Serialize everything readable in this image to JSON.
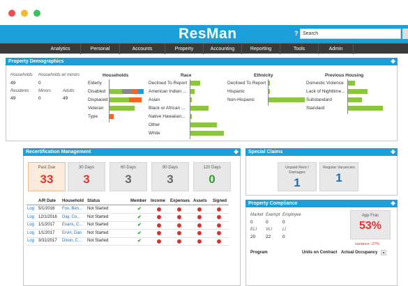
{
  "window": {
    "controls": [
      "close",
      "minimize",
      "maximize"
    ]
  },
  "header": {
    "logo": "ResMan",
    "help": "?",
    "search_placeholder": "Search"
  },
  "nav": [
    "Analytics",
    "Personal",
    "Accounts",
    "Property",
    "Accounting",
    "Reporting",
    "Tools",
    "Admin"
  ],
  "demographics": {
    "title": "Property Demographics",
    "stats": [
      {
        "label": "Households",
        "value": "49"
      },
      {
        "label": "Households w/ minors",
        "value": "0"
      },
      {
        "label": "Residents",
        "value": "49"
      },
      {
        "label": "Minors",
        "value": "0"
      },
      {
        "label": "Adults",
        "value": "49"
      }
    ],
    "households": {
      "title": "Households",
      "rows": [
        {
          "label": "Elderly",
          "segments": []
        },
        {
          "label": "Disabled",
          "segments": [
            {
              "frac": 0.35,
              "color": "#8cc63f"
            },
            {
              "frac": 0.28,
              "color": "#888888"
            },
            {
              "frac": 0.18,
              "color": "#f26522"
            },
            {
              "frac": 0.16,
              "color": "#1a9fd8"
            }
          ]
        },
        {
          "label": "Displaced",
          "segments": [
            {
              "frac": 0.55,
              "color": "#8cc63f"
            },
            {
              "frac": 0.35,
              "color": "#f26522"
            }
          ]
        },
        {
          "label": "Veteran",
          "segments": [
            {
              "frac": 0.72,
              "color": "#8cc63f"
            }
          ]
        },
        {
          "label": "Type",
          "segments": [
            {
              "frac": 0.12,
              "color": "#f26522"
            }
          ]
        }
      ]
    },
    "race": {
      "title": "Race",
      "rows": [
        {
          "label": "Declined To Report",
          "frac": 0.3
        },
        {
          "label": "American Indian ...",
          "frac": 0.12
        },
        {
          "label": "Asian",
          "frac": 0.04
        },
        {
          "label": "Black or African ...",
          "frac": 0.55
        },
        {
          "label": "Native Hawaiian...",
          "frac": 0.03
        },
        {
          "label": "Other",
          "frac": 0.8
        },
        {
          "label": "White",
          "frac": 1.0
        }
      ]
    },
    "ethnicity": {
      "title": "Ethnicity",
      "rows": [
        {
          "label": "Declined To Report",
          "frac": 0.02
        },
        {
          "label": "Hispanic",
          "frac": 0.03
        },
        {
          "label": "Non-Hispanic",
          "frac": 1.0
        }
      ]
    },
    "housing": {
      "title": "Previous Housing",
      "rows": [
        {
          "label": "Domestic Violence",
          "frac": 0.2
        },
        {
          "label": "Lack of Nighttime...",
          "frac": 0.55
        },
        {
          "label": "Substandard",
          "frac": 0.4
        },
        {
          "label": "Standard",
          "frac": 1.0
        }
      ]
    }
  },
  "recert": {
    "title": "Recertification Management",
    "cards": [
      {
        "label": "Past Due",
        "value": "33",
        "color": "#e53030"
      },
      {
        "label": "30 Days",
        "value": "3",
        "color": "#e53030"
      },
      {
        "label": "60 Days",
        "value": "3",
        "color": "#666666"
      },
      {
        "label": "90 Days",
        "value": "3",
        "color": "#666666"
      },
      {
        "label": "120 Days",
        "value": "0",
        "color": "#2f9e2f"
      }
    ],
    "columns": [
      "A/R Date",
      "Household",
      "Status",
      "Member",
      "Income",
      "Expenses",
      "Assets",
      "Signed"
    ],
    "rows": [
      {
        "log": "Log",
        "date": "5/1/2016",
        "household": "Fox, Ben...",
        "status": "Not Started"
      },
      {
        "log": "Log",
        "date": "12/1/2016",
        "household": "Day, Co...",
        "status": "Not Started"
      },
      {
        "log": "Log",
        "date": "1/1/2017",
        "household": "Evans, C...",
        "status": "Not Started"
      },
      {
        "log": "Log",
        "date": "1/1/2017",
        "household": "Ervin, Dan",
        "status": "Not Started"
      },
      {
        "log": "Log",
        "date": "3/31/2017",
        "household": "Dixon, C...",
        "status": "Not Started"
      }
    ]
  },
  "claims": {
    "title": "Special Claims",
    "cards": [
      {
        "label": "Unpaid Rent / Damages",
        "value": "1"
      },
      {
        "label": "Regular Vacancies",
        "value": "1"
      }
    ]
  },
  "compliance": {
    "title": "Property Compliance",
    "row1_labels": [
      "Market",
      "Exempt",
      "Employee"
    ],
    "row1_values": [
      "0",
      "0",
      "0"
    ],
    "row2_labels": [
      "ELI",
      "VLI",
      "LI"
    ],
    "row2_values": [
      "20",
      "22",
      "0"
    ],
    "app_frac_label": "App Frac",
    "app_frac_value": "53%",
    "variance": "variance -27%",
    "columns": [
      "Program",
      "Units on Contract",
      "Actual Occupancy"
    ]
  },
  "colors": {
    "accent": "#1a9fd8",
    "nav": "#3a3a3a",
    "bar_green": "#8cc63f",
    "bar_orange": "#f26522",
    "danger": "#d93030"
  }
}
